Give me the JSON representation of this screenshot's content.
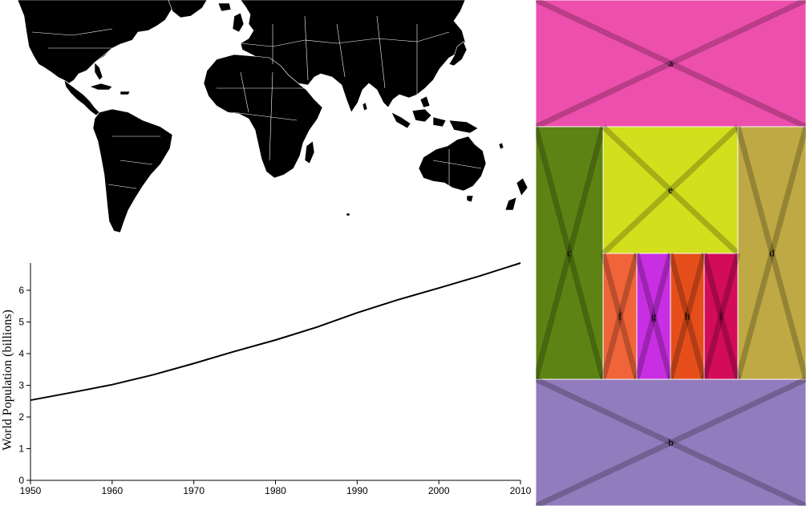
{
  "map": {
    "fill_color": "#000000",
    "border_color": "#ffffff"
  },
  "chart_data": {
    "type": "line",
    "x": [
      1950,
      1955,
      1960,
      1965,
      1970,
      1975,
      1980,
      1985,
      1990,
      1995,
      2000,
      2005,
      2010
    ],
    "series": [
      {
        "values": [
          2.53,
          2.77,
          3.02,
          3.33,
          3.69,
          4.07,
          4.43,
          4.83,
          5.29,
          5.7,
          6.07,
          6.45,
          6.86
        ]
      }
    ],
    "xticks": [
      "1950",
      "1960",
      "1970",
      "1980",
      "1990",
      "2000",
      "2010"
    ],
    "yticks": [
      "0",
      "1",
      "2",
      "3",
      "4",
      "5",
      "6"
    ],
    "title": "",
    "xlabel": "",
    "ylabel": "World Population (billions)",
    "xlim": [
      1950,
      2010
    ],
    "ylim": [
      0,
      6.86
    ],
    "grid": false
  },
  "layout_regions": [
    {
      "key": "a",
      "label": "a",
      "color": "#ed4fad"
    },
    {
      "key": "c",
      "label": "c",
      "color": "#5c8314"
    },
    {
      "key": "e",
      "label": "e",
      "color": "#d2df1d"
    },
    {
      "key": "d",
      "label": "d",
      "color": "#bfa944"
    },
    {
      "key": "f",
      "label": "f",
      "color": "#f06439"
    },
    {
      "key": "g",
      "label": "g",
      "color": "#c82ee2"
    },
    {
      "key": "h",
      "label": "h",
      "color": "#e54e1b"
    },
    {
      "key": "i",
      "label": "i",
      "color": "#d20b5b"
    },
    {
      "key": "b",
      "label": "b",
      "color": "#927cbd"
    }
  ]
}
